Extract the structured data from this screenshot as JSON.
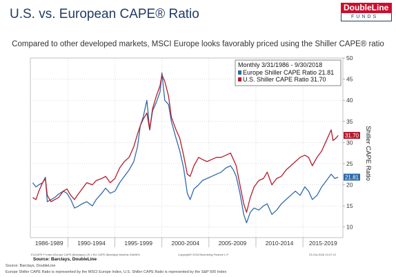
{
  "header": {
    "title": "U.S. vs. European CAPE® Ratio",
    "logo_top": "DoubleLine",
    "logo_bottom": "FUNDS",
    "subtitle": "Compared to other developed markets, MSCI Europe looks favorably priced using the Shiller CAPE® ratio"
  },
  "chart_data": {
    "type": "line",
    "xlim": [
      1986.0,
      2019.25
    ],
    "ylim": [
      7.5,
      50
    ],
    "yticks": [
      10,
      15,
      20,
      25,
      30,
      35,
      40,
      45,
      50
    ],
    "ylabel": "Shiller CAPE Ratio",
    "xcategory_labels": [
      "1986-1989",
      "1990-1994",
      "1995-1999",
      "2000-2004",
      "2005-2009",
      "2010-2014",
      "2015-2019"
    ],
    "legend": {
      "position": "top-right",
      "header": "Monthly 3/31/1986 - 9/30/2018",
      "items": [
        "Europe Shiller CAPE Ratio 21.81",
        "U.S. Shiller CAPE Ratio    31.70"
      ]
    },
    "series": [
      {
        "name": "Europe Shiller CAPE Ratio",
        "color": "#2e6aa8",
        "last_value_label": "21.81",
        "points": [
          [
            1986.25,
            20.5
          ],
          [
            1986.6,
            19.5
          ],
          [
            1986.9,
            20.0
          ],
          [
            1987.3,
            20.5
          ],
          [
            1987.6,
            21.8
          ],
          [
            1987.8,
            16.0
          ],
          [
            1988.2,
            16.5
          ],
          [
            1988.6,
            17.0
          ],
          [
            1989.0,
            17.8
          ],
          [
            1989.5,
            18.5
          ],
          [
            1989.9,
            18.0
          ],
          [
            1990.3,
            16.5
          ],
          [
            1990.7,
            14.5
          ],
          [
            1991.0,
            14.8
          ],
          [
            1991.5,
            15.5
          ],
          [
            1992.0,
            16.0
          ],
          [
            1992.6,
            15.0
          ],
          [
            1993.0,
            16.5
          ],
          [
            1993.6,
            18.0
          ],
          [
            1994.0,
            19.2
          ],
          [
            1994.5,
            18.0
          ],
          [
            1995.0,
            18.5
          ],
          [
            1995.5,
            20.5
          ],
          [
            1996.0,
            22.0
          ],
          [
            1996.5,
            23.5
          ],
          [
            1997.0,
            25.5
          ],
          [
            1997.4,
            29.0
          ],
          [
            1997.7,
            34.0
          ],
          [
            1998.0,
            36.0
          ],
          [
            1998.4,
            40.0
          ],
          [
            1998.7,
            33.0
          ],
          [
            1999.0,
            37.5
          ],
          [
            1999.4,
            39.5
          ],
          [
            1999.8,
            42.0
          ],
          [
            2000.0,
            46.5
          ],
          [
            2000.3,
            40.0
          ],
          [
            2000.7,
            39.0
          ],
          [
            2001.0,
            35.0
          ],
          [
            2001.5,
            31.0
          ],
          [
            2001.9,
            28.0
          ],
          [
            2002.3,
            24.0
          ],
          [
            2002.7,
            18.0
          ],
          [
            2003.0,
            16.5
          ],
          [
            2003.4,
            19.0
          ],
          [
            2003.9,
            20.0
          ],
          [
            2004.3,
            21.0
          ],
          [
            2004.8,
            21.5
          ],
          [
            2005.3,
            22.0
          ],
          [
            2005.8,
            22.5
          ],
          [
            2006.3,
            23.0
          ],
          [
            2006.8,
            24.0
          ],
          [
            2007.3,
            24.5
          ],
          [
            2007.6,
            23.5
          ],
          [
            2007.9,
            22.0
          ],
          [
            2008.3,
            18.0
          ],
          [
            2008.7,
            13.0
          ],
          [
            2009.0,
            11.0
          ],
          [
            2009.4,
            13.5
          ],
          [
            2009.8,
            14.5
          ],
          [
            2010.3,
            14.0
          ],
          [
            2010.8,
            15.0
          ],
          [
            2011.2,
            15.5
          ],
          [
            2011.7,
            13.0
          ],
          [
            2012.2,
            14.0
          ],
          [
            2012.7,
            15.5
          ],
          [
            2013.2,
            16.5
          ],
          [
            2013.7,
            17.5
          ],
          [
            2014.2,
            18.5
          ],
          [
            2014.7,
            17.5
          ],
          [
            2015.2,
            19.5
          ],
          [
            2015.6,
            18.5
          ],
          [
            2016.0,
            16.5
          ],
          [
            2016.5,
            17.5
          ],
          [
            2017.0,
            19.5
          ],
          [
            2017.5,
            21.0
          ],
          [
            2018.0,
            22.5
          ],
          [
            2018.4,
            21.5
          ],
          [
            2018.75,
            21.81
          ]
        ]
      },
      {
        "name": "U.S. Shiller CAPE Ratio",
        "color": "#b31b2c",
        "last_value_label": "31.70",
        "points": [
          [
            1986.25,
            17.0
          ],
          [
            1986.6,
            16.5
          ],
          [
            1986.9,
            18.5
          ],
          [
            1987.3,
            20.5
          ],
          [
            1987.6,
            21.5
          ],
          [
            1987.8,
            17.5
          ],
          [
            1988.2,
            16.0
          ],
          [
            1988.6,
            16.5
          ],
          [
            1989.0,
            17.0
          ],
          [
            1989.5,
            18.5
          ],
          [
            1989.9,
            19.0
          ],
          [
            1990.3,
            17.5
          ],
          [
            1990.7,
            16.5
          ],
          [
            1991.0,
            17.5
          ],
          [
            1991.5,
            19.0
          ],
          [
            1992.0,
            20.5
          ],
          [
            1992.6,
            20.0
          ],
          [
            1993.0,
            21.0
          ],
          [
            1993.6,
            21.5
          ],
          [
            1994.0,
            22.0
          ],
          [
            1994.5,
            20.5
          ],
          [
            1995.0,
            21.5
          ],
          [
            1995.5,
            24.0
          ],
          [
            1996.0,
            25.5
          ],
          [
            1996.5,
            26.5
          ],
          [
            1997.0,
            29.0
          ],
          [
            1997.4,
            32.0
          ],
          [
            1997.7,
            34.0
          ],
          [
            1998.0,
            35.5
          ],
          [
            1998.4,
            37.0
          ],
          [
            1998.7,
            33.0
          ],
          [
            1999.0,
            38.0
          ],
          [
            1999.4,
            41.0
          ],
          [
            1999.8,
            43.5
          ],
          [
            2000.0,
            46.0
          ],
          [
            2000.3,
            44.5
          ],
          [
            2000.7,
            41.0
          ],
          [
            2001.0,
            36.0
          ],
          [
            2001.5,
            33.0
          ],
          [
            2001.9,
            31.0
          ],
          [
            2002.3,
            27.0
          ],
          [
            2002.7,
            22.5
          ],
          [
            2003.0,
            22.0
          ],
          [
            2003.4,
            24.5
          ],
          [
            2003.9,
            26.5
          ],
          [
            2004.3,
            26.0
          ],
          [
            2004.8,
            25.5
          ],
          [
            2005.3,
            26.0
          ],
          [
            2005.8,
            26.5
          ],
          [
            2006.3,
            26.5
          ],
          [
            2006.8,
            27.0
          ],
          [
            2007.3,
            27.5
          ],
          [
            2007.6,
            26.0
          ],
          [
            2007.9,
            24.5
          ],
          [
            2008.3,
            20.0
          ],
          [
            2008.7,
            15.5
          ],
          [
            2009.0,
            13.5
          ],
          [
            2009.4,
            17.0
          ],
          [
            2009.8,
            19.5
          ],
          [
            2010.3,
            21.0
          ],
          [
            2010.8,
            21.5
          ],
          [
            2011.2,
            23.0
          ],
          [
            2011.7,
            20.0
          ],
          [
            2012.2,
            21.5
          ],
          [
            2012.7,
            22.0
          ],
          [
            2013.2,
            23.5
          ],
          [
            2013.7,
            24.5
          ],
          [
            2014.2,
            25.5
          ],
          [
            2014.7,
            26.5
          ],
          [
            2015.2,
            27.0
          ],
          [
            2015.6,
            26.5
          ],
          [
            2016.0,
            24.5
          ],
          [
            2016.5,
            26.5
          ],
          [
            2017.0,
            28.0
          ],
          [
            2017.5,
            30.5
          ],
          [
            2018.0,
            33.0
          ],
          [
            2018.2,
            30.5
          ],
          [
            2018.5,
            31.0
          ],
          [
            2018.75,
            31.7
          ]
        ]
      }
    ]
  },
  "footer": {
    "chart_meta": ".EUCAPE F Index (Europe CAPE (Barclays)) US v EU CAPE (Barclays)  Monthly 31MAR1",
    "copyright": "Copyright© 2018 Bloomberg Finance L.P.",
    "timestamp": "23-Oct-2018 10:47:12",
    "chart_source": "Source:  Barclays, DoubleLine",
    "source_note": "Source: Barclays, DoubleLine",
    "note": "Europe Shiller CAPE Ratio is represented by the MSCI Europe Index, U.S. Shiller CAPE Ratio is represented by the S&P 500 Index"
  }
}
